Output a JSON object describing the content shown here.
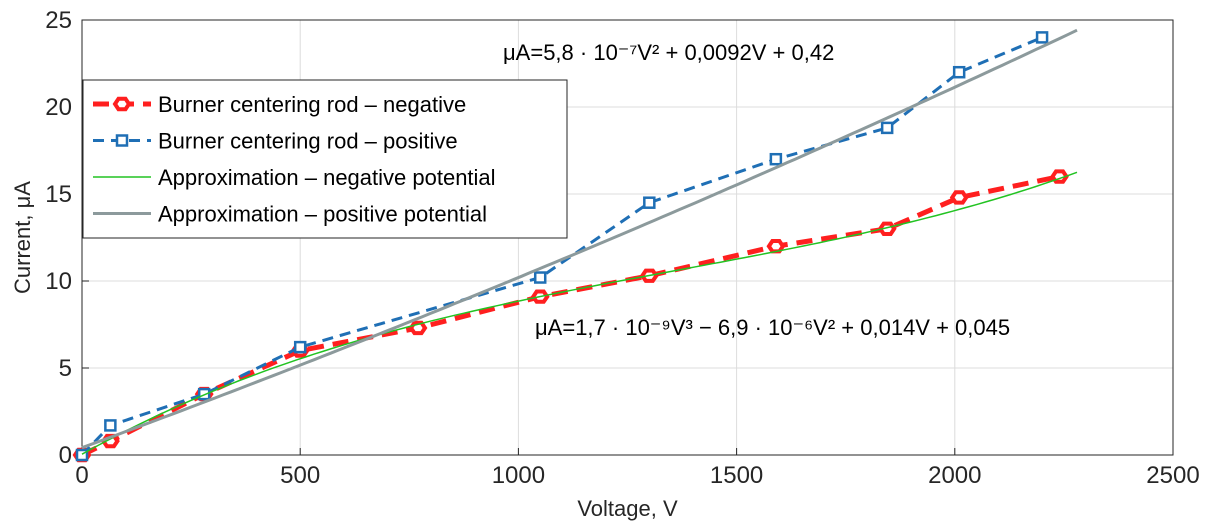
{
  "chart_data": {
    "type": "line",
    "xlabel": "Voltage, V",
    "ylabel": "Current, μA",
    "xlim": [
      0,
      2500
    ],
    "ylim": [
      0,
      25
    ],
    "xticks": [
      "0",
      "500",
      "1000",
      "1500",
      "2000",
      "2500"
    ],
    "yticks": [
      "0",
      "5",
      "10",
      "15",
      "20",
      "25"
    ],
    "grid": true,
    "legend_position": "upper-left",
    "series": [
      {
        "name": "Burner centering rod – negative",
        "color": "#ff1f1f",
        "marker": "hexagon",
        "line": "dashed-thick",
        "x": [
          0,
          65,
          280,
          500,
          770,
          1050,
          1300,
          1590,
          1845,
          2010,
          2240
        ],
        "y": [
          0,
          0.8,
          3.5,
          6.0,
          7.3,
          9.1,
          10.3,
          12.0,
          13.0,
          14.8,
          16.0
        ]
      },
      {
        "name": "Burner centering rod – positive",
        "color": "#1f6fb5",
        "marker": "square",
        "line": "dashed",
        "x": [
          0,
          65,
          280,
          500,
          1050,
          1300,
          1590,
          1845,
          2010,
          2200
        ],
        "y": [
          0,
          1.7,
          3.5,
          6.2,
          10.2,
          14.5,
          17.0,
          18.8,
          22.0,
          24.0
        ]
      },
      {
        "name": "Approximation – negative potential",
        "color": "#22c322",
        "line": "solid-thin",
        "poly": [
          0.045,
          0.014,
          -6.9e-06,
          1.7e-09
        ],
        "x_range": [
          0,
          2280
        ]
      },
      {
        "name": "Approximation – positive potential",
        "color": "#8c9a9c",
        "line": "solid-thick",
        "poly": [
          0.42,
          0.0092,
          5.8e-07
        ],
        "x_range": [
          0,
          2280
        ]
      }
    ],
    "annotations": [
      {
        "text": "μA=5,8 · 10⁻⁷V² + 0,0092V + 0,42"
      },
      {
        "text": "μA=1,7 · 10⁻⁹V³ − 6,9 · 10⁻⁶V² + 0,014V + 0,045"
      }
    ]
  }
}
